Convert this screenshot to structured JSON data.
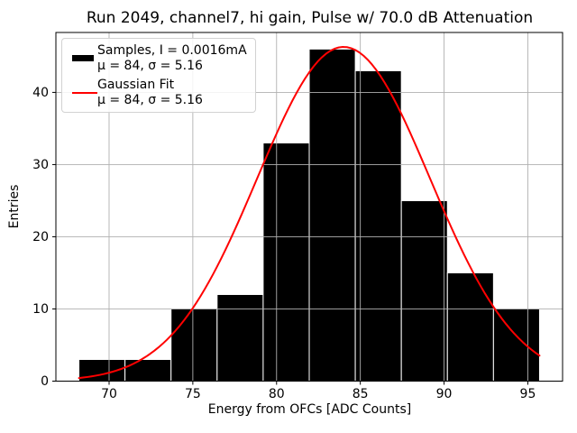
{
  "chart_data": {
    "type": "bar",
    "subtype": "histogram_with_fit",
    "title": "Run 2049, channel7, hi gain, Pulse w/ 70.0 dB Attenuation",
    "xlabel": "Energy from OFCs [ADC Counts]",
    "ylabel": "Entries",
    "xlim": [
      66.825,
      97.075
    ],
    "ylim": [
      0,
      48.3
    ],
    "x_ticks": [
      70,
      75,
      80,
      85,
      90,
      95
    ],
    "y_ticks": [
      0,
      10,
      20,
      30,
      40
    ],
    "grid": true,
    "bin_edges": [
      68.2,
      70.95,
      73.7,
      76.45,
      79.2,
      81.95,
      84.7,
      87.45,
      90.2,
      92.95,
      95.7
    ],
    "counts": [
      3,
      3,
      10,
      12,
      33,
      46,
      43,
      25,
      15,
      10
    ],
    "series": [
      {
        "name": "Samples, I = 0.0016mA",
        "type": "histogram",
        "color": "#000000",
        "edge_color": "#ffffff",
        "mu": 84,
        "sigma": 5.16
      },
      {
        "name": "Gaussian Fit",
        "type": "line",
        "color": "#ff0000",
        "mu": 84,
        "sigma": 5.16,
        "amplitude": 46.3,
        "x_range": [
          68.2,
          95.7
        ]
      }
    ],
    "legend": {
      "position": "upper left",
      "entries": [
        {
          "swatch": "patch",
          "color": "#000000",
          "label_line1": "Samples, I = 0.0016mA",
          "label_line2": "μ = 84, σ = 5.16"
        },
        {
          "swatch": "line",
          "color": "#ff0000",
          "label_line1": "Gaussian Fit",
          "label_line2": "μ = 84, σ = 5.16"
        }
      ]
    },
    "colors": {
      "background": "#ffffff",
      "spine": "#000000",
      "grid": "#b0b0b0",
      "tick_text": "#000000"
    }
  }
}
